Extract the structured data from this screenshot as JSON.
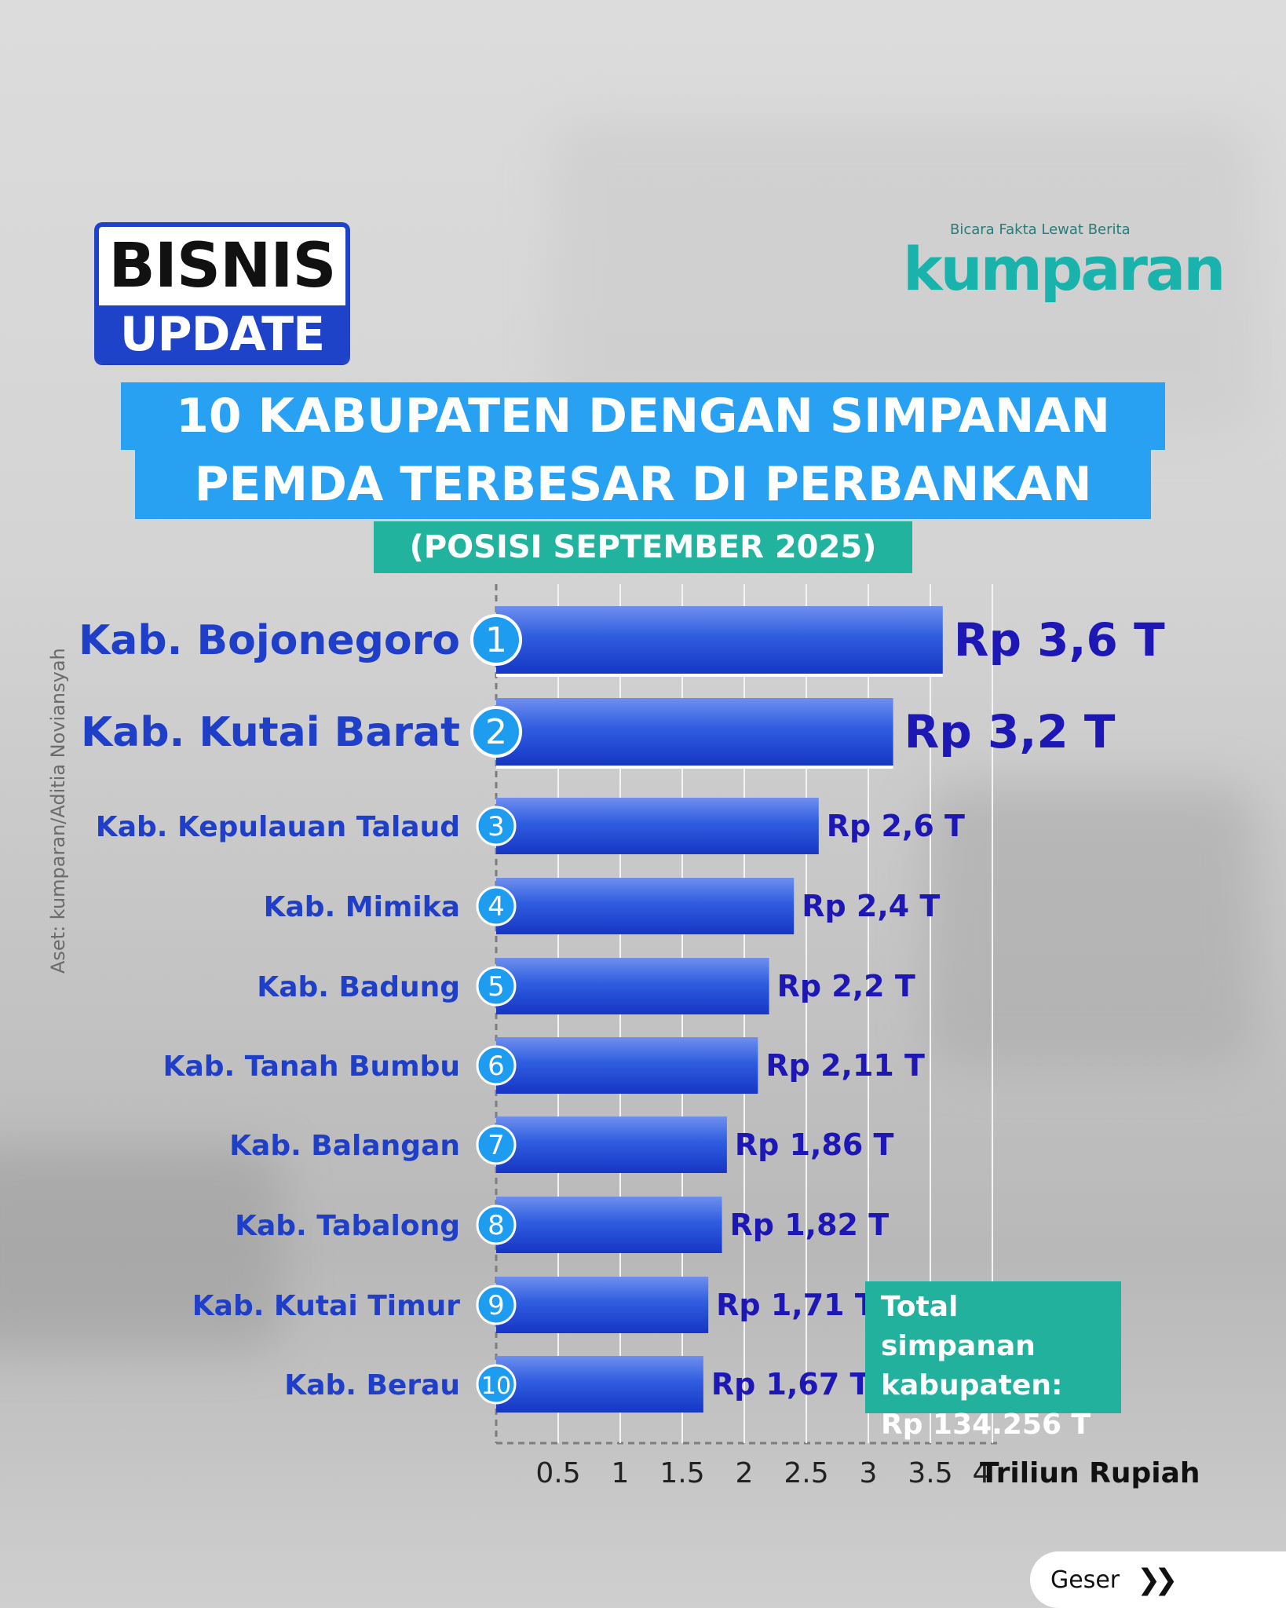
{
  "header": {
    "badge_top": "BISNIS",
    "badge_bottom": "UPDATE",
    "brand_tagline": "Bicara Fakta Lewat Berita",
    "brand_name": "kumparan"
  },
  "title": {
    "line1": "10 KABUPATEN DENGAN SIMPANAN",
    "line2": "PEMDA TERBESAR DI PERBANKAN",
    "subtitle": "(POSISI SEPTEMBER 2025)"
  },
  "credit": "Aset: kumparan/Aditia Noviansyah",
  "total_box": {
    "line1": "Total simpanan",
    "line2": "kabupaten:",
    "line3": "Rp 134.256 T"
  },
  "nav": {
    "next_label": "Geser",
    "next_icon": "double-chevron-right-icon"
  },
  "colors": {
    "bar": "#1f49d6",
    "label": "#1f3fc8",
    "value": "#1c17b5",
    "title_bg": "#29a1f2",
    "accent": "#22b39f"
  },
  "chart_data": {
    "type": "bar",
    "orientation": "horizontal",
    "categories": [
      "Kab. Bojonegoro",
      "Kab. Kutai Barat",
      "Kab. Kepulauan Talaud",
      "Kab. Mimika",
      "Kab. Badung",
      "Kab. Tanah Bumbu",
      "Kab. Balangan",
      "Kab. Tabalong",
      "Kab. Kutai Timur",
      "Kab. Berau"
    ],
    "ranks": [
      "1",
      "2",
      "3",
      "4",
      "5",
      "6",
      "7",
      "8",
      "9",
      "10"
    ],
    "values": [
      3.6,
      3.2,
      2.6,
      2.4,
      2.2,
      2.11,
      1.86,
      1.82,
      1.71,
      1.67
    ],
    "value_labels": [
      "Rp 3,6 T",
      "Rp 3,2 T",
      "Rp 2,6 T",
      "Rp 2,4 T",
      "Rp 2,2 T",
      "Rp 2,11 T",
      "Rp 1,86 T",
      "Rp 1,82 T",
      "Rp 1,71 T",
      "Rp 1,67 T"
    ],
    "x_ticks": [
      "0.5",
      "1",
      "1.5",
      "2",
      "2.5",
      "3",
      "3.5",
      "4"
    ],
    "xlabel": "Triliun Rupiah",
    "xlim": [
      0,
      4
    ],
    "grid": true
  }
}
